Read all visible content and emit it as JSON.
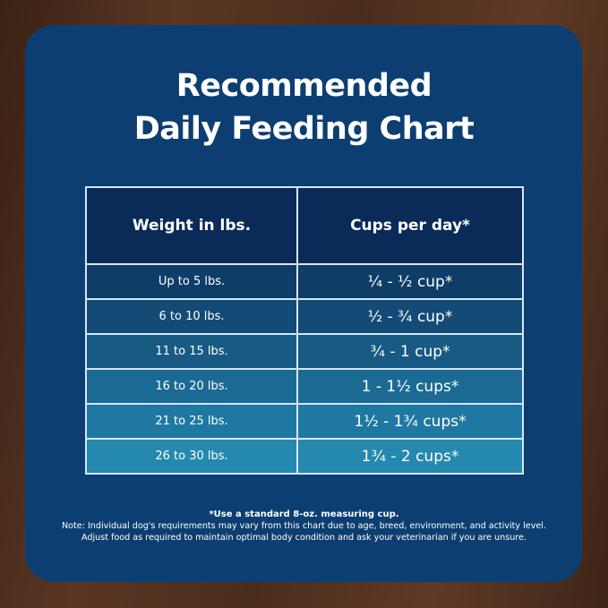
{
  "title": [
    "Recommended",
    "Daily Feeding Chart"
  ],
  "table": {
    "headers": [
      "Weight in lbs.",
      "Cups per day*"
    ],
    "rows": [
      [
        "Up to 5 lbs.",
        "¼ - ½ cup*"
      ],
      [
        "6 to 10 lbs.",
        "½ - ¾ cup*"
      ],
      [
        "11 to 15 lbs.",
        "¾ - 1 cup*"
      ],
      [
        "16 to 20 lbs.",
        "1 - 1½ cups*"
      ],
      [
        "21 to 25 lbs.",
        "1½ - 1¾ cups*"
      ],
      [
        "26 to 30 lbs.",
        "1¾ - 2 cups*"
      ]
    ],
    "row_colors": [
      "#0f3d68",
      "#134b76",
      "#175a84",
      "#1b6a93",
      "#1f78a1",
      "#2588ae"
    ]
  },
  "notes": {
    "footnote": "*Use a standard 8-oz. measuring cup.",
    "line1": "Note: Individual dog's requirements may vary from this chart due to age, breed, environment, and activity level.",
    "line2": "Adjust food as required to maintain optimal body condition and ask your veterinarian if you are unsure."
  }
}
